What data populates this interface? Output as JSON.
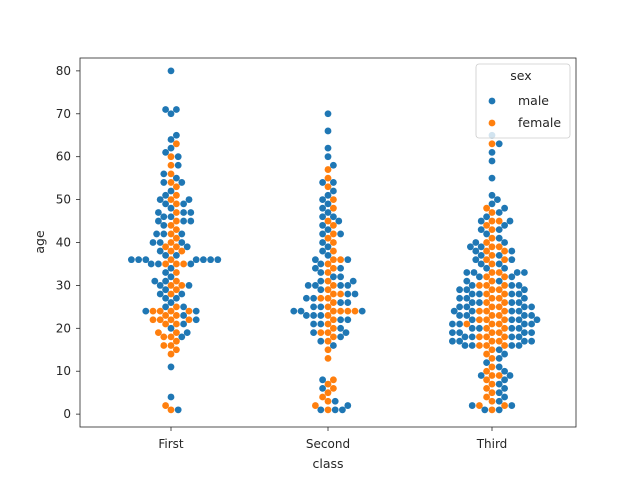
{
  "chart_data": {
    "type": "swarm",
    "title": "",
    "xlabel": "class",
    "ylabel": "age",
    "categories": [
      "First",
      "Second",
      "Third"
    ],
    "ylim": [
      -3,
      83
    ],
    "yticks": [
      0,
      10,
      20,
      30,
      40,
      50,
      60,
      70,
      80
    ],
    "grid": false,
    "legend": {
      "title": "sex",
      "placement": "top-right",
      "entries": [
        {
          "name": "male",
          "color": "#1f77b4"
        },
        {
          "name": "female",
          "color": "#ff7f0e"
        }
      ]
    },
    "series": [
      {
        "name": "male",
        "color": "#1f77b4",
        "values": {
          "First": [
            80,
            71,
            71,
            70,
            65,
            64,
            62,
            61,
            60,
            58,
            56,
            55,
            54,
            54,
            52,
            51,
            50,
            50,
            49,
            49,
            48,
            47,
            47,
            47,
            46,
            46,
            45,
            45,
            45,
            44,
            42,
            42,
            42,
            40,
            40,
            40,
            39,
            38,
            37,
            37,
            36,
            36,
            36,
            36,
            36,
            36,
            36,
            35,
            35,
            35,
            34,
            33,
            32,
            31,
            31,
            30,
            30,
            29,
            28,
            28,
            27,
            27,
            26,
            25,
            25,
            24,
            24,
            23,
            22,
            21,
            20,
            19,
            18,
            11,
            4,
            1
          ],
          "Second": [
            70,
            66,
            62,
            60,
            58,
            54,
            54,
            52,
            51,
            50,
            49,
            48,
            47,
            46,
            46,
            45,
            44,
            43,
            42,
            42,
            40,
            39,
            38,
            37,
            36,
            36,
            35,
            34,
            34,
            33,
            32,
            32,
            31,
            31,
            30,
            30,
            30,
            30,
            29,
            28,
            28,
            27,
            27,
            26,
            26,
            25,
            25,
            24,
            24,
            24,
            23,
            23,
            23,
            22,
            22,
            21,
            21,
            20,
            19,
            19,
            18,
            17,
            16,
            8,
            6,
            3,
            2,
            1,
            1,
            1
          ],
          "Third": [
            65,
            63,
            61,
            59,
            55,
            51,
            50,
            49,
            48,
            47,
            46,
            45,
            45,
            44,
            43,
            43,
            42,
            41,
            40,
            40,
            39,
            39,
            38,
            38,
            37,
            37,
            36,
            36,
            35,
            35,
            34,
            34,
            33,
            33,
            33,
            33,
            32,
            32,
            31,
            31,
            30,
            30,
            30,
            29,
            29,
            29,
            28,
            28,
            28,
            28,
            27,
            27,
            27,
            26,
            26,
            26,
            26,
            25,
            25,
            25,
            25,
            24,
            24,
            24,
            24,
            23,
            23,
            23,
            23,
            22,
            22,
            22,
            22,
            21,
            21,
            21,
            21,
            20,
            20,
            20,
            20,
            19,
            19,
            19,
            19,
            18,
            18,
            18,
            18,
            17,
            17,
            17,
            17,
            16,
            16,
            16,
            16,
            15,
            14,
            13,
            12,
            11,
            10,
            9,
            9,
            8,
            7,
            6,
            5,
            4,
            3,
            2,
            2,
            1,
            1
          ]
        }
      },
      {
        "name": "female",
        "color": "#ff7f0e",
        "values": {
          "First": [
            63,
            60,
            58,
            56,
            54,
            53,
            51,
            50,
            49,
            47,
            45,
            44,
            43,
            42,
            41,
            40,
            39,
            39,
            38,
            38,
            36,
            35,
            35,
            35,
            33,
            31,
            30,
            30,
            29,
            28,
            25,
            24,
            24,
            24,
            24,
            23,
            23,
            22,
            22,
            22,
            22,
            21,
            21,
            19,
            19,
            18,
            18,
            17,
            16,
            16,
            15,
            14,
            2,
            1
          ],
          "Second": [
            57,
            55,
            53,
            50,
            48,
            45,
            44,
            42,
            41,
            40,
            38,
            36,
            36,
            35,
            34,
            33,
            31,
            30,
            29,
            28,
            28,
            27,
            27,
            26,
            25,
            24,
            24,
            24,
            24,
            23,
            22,
            21,
            20,
            19,
            19,
            18,
            17,
            15,
            13,
            8,
            7,
            6,
            5,
            4,
            3,
            2,
            1
          ],
          "Third": [
            63,
            48,
            47,
            45,
            45,
            44,
            43,
            41,
            40,
            39,
            39,
            38,
            38,
            37,
            36,
            36,
            35,
            33,
            33,
            32,
            32,
            31,
            30,
            30,
            30,
            29,
            29,
            28,
            28,
            27,
            27,
            26,
            26,
            25,
            25,
            24,
            24,
            24,
            23,
            23,
            22,
            22,
            22,
            21,
            21,
            21,
            20,
            20,
            19,
            19,
            18,
            18,
            18,
            17,
            17,
            16,
            16,
            16,
            15,
            14,
            13,
            11,
            10,
            9,
            9,
            8,
            7,
            6,
            5,
            4,
            3,
            2,
            2,
            1
          ]
        }
      }
    ]
  }
}
